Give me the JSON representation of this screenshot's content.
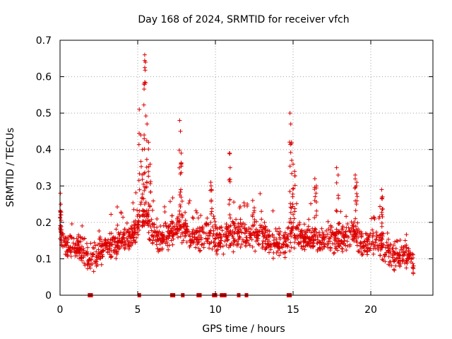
{
  "chart_data": {
    "type": "scatter",
    "title": "Day 168 of 2024, SRMTID for receiver vfch",
    "xlabel": "GPS time / hours",
    "ylabel": "SRMTID / TECUs",
    "xlim": [
      0,
      24
    ],
    "ylim": [
      0,
      0.7
    ],
    "x_ticks": [
      0,
      5,
      10,
      15,
      20
    ],
    "x_tick_labels": [
      "0",
      "5",
      "10",
      "15",
      "20"
    ],
    "y_ticks": [
      0,
      0.1,
      0.2,
      0.3,
      0.4,
      0.5,
      0.6,
      0.7
    ],
    "y_tick_labels": [
      "0",
      "0.1",
      "0.2",
      "0.3",
      "0.4",
      "0.5",
      "0.6",
      "0.7"
    ],
    "grid": true,
    "marker": "+",
    "color": "#dd0000",
    "x_range_data": [
      0.0,
      22.8
    ],
    "baseline": [
      [
        0.0,
        0.17
      ],
      [
        0.5,
        0.13
      ],
      [
        1.0,
        0.13
      ],
      [
        1.5,
        0.12
      ],
      [
        2.0,
        0.09
      ],
      [
        2.5,
        0.12
      ],
      [
        3.0,
        0.13
      ],
      [
        3.5,
        0.14
      ],
      [
        4.0,
        0.15
      ],
      [
        4.5,
        0.16
      ],
      [
        5.0,
        0.19
      ],
      [
        5.5,
        0.22
      ],
      [
        6.0,
        0.16
      ],
      [
        6.5,
        0.15
      ],
      [
        7.0,
        0.17
      ],
      [
        7.5,
        0.18
      ],
      [
        8.0,
        0.18
      ],
      [
        8.5,
        0.17
      ],
      [
        9.0,
        0.16
      ],
      [
        9.5,
        0.17
      ],
      [
        10.0,
        0.15
      ],
      [
        10.5,
        0.16
      ],
      [
        11.0,
        0.16
      ],
      [
        11.5,
        0.17
      ],
      [
        12.0,
        0.16
      ],
      [
        12.5,
        0.16
      ],
      [
        13.0,
        0.17
      ],
      [
        13.5,
        0.15
      ],
      [
        14.0,
        0.14
      ],
      [
        14.5,
        0.14
      ],
      [
        15.0,
        0.18
      ],
      [
        15.5,
        0.16
      ],
      [
        16.0,
        0.16
      ],
      [
        16.5,
        0.15
      ],
      [
        17.0,
        0.15
      ],
      [
        17.5,
        0.16
      ],
      [
        18.0,
        0.15
      ],
      [
        18.5,
        0.16
      ],
      [
        19.0,
        0.17
      ],
      [
        19.5,
        0.14
      ],
      [
        20.0,
        0.14
      ],
      [
        20.5,
        0.15
      ],
      [
        21.0,
        0.12
      ],
      [
        21.5,
        0.1
      ],
      [
        22.0,
        0.11
      ],
      [
        22.5,
        0.1
      ],
      [
        22.8,
        0.09
      ]
    ],
    "spikes": [
      {
        "x": 0.02,
        "y": 0.28
      },
      {
        "x": 0.05,
        "y": 0.25
      },
      {
        "x": 5.1,
        "y": 0.51
      },
      {
        "x": 5.2,
        "y": 0.44
      },
      {
        "x": 5.3,
        "y": 0.4
      },
      {
        "x": 5.4,
        "y": 0.58
      },
      {
        "x": 5.45,
        "y": 0.66
      },
      {
        "x": 5.5,
        "y": 0.64
      },
      {
        "x": 5.6,
        "y": 0.47
      },
      {
        "x": 5.7,
        "y": 0.42
      },
      {
        "x": 5.8,
        "y": 0.36
      },
      {
        "x": 7.7,
        "y": 0.48
      },
      {
        "x": 7.75,
        "y": 0.45
      },
      {
        "x": 7.8,
        "y": 0.39
      },
      {
        "x": 9.7,
        "y": 0.31
      },
      {
        "x": 9.75,
        "y": 0.29
      },
      {
        "x": 10.9,
        "y": 0.39
      },
      {
        "x": 10.95,
        "y": 0.35
      },
      {
        "x": 12.4,
        "y": 0.26
      },
      {
        "x": 12.5,
        "y": 0.24
      },
      {
        "x": 14.8,
        "y": 0.5
      },
      {
        "x": 14.85,
        "y": 0.47
      },
      {
        "x": 14.9,
        "y": 0.42
      },
      {
        "x": 15.0,
        "y": 0.36
      },
      {
        "x": 15.1,
        "y": 0.34
      },
      {
        "x": 16.4,
        "y": 0.32
      },
      {
        "x": 16.5,
        "y": 0.3
      },
      {
        "x": 17.8,
        "y": 0.35
      },
      {
        "x": 17.9,
        "y": 0.33
      },
      {
        "x": 19.0,
        "y": 0.33
      },
      {
        "x": 19.1,
        "y": 0.31
      },
      {
        "x": 20.7,
        "y": 0.29
      },
      {
        "x": 20.75,
        "y": 0.27
      }
    ],
    "zero_markers_x": [
      1.9,
      2.0,
      5.1,
      7.2,
      7.3,
      7.9,
      8.9,
      9.0,
      9.9,
      10.0,
      10.4,
      10.5,
      10.6,
      11.5,
      12.0,
      14.7,
      14.8
    ]
  }
}
